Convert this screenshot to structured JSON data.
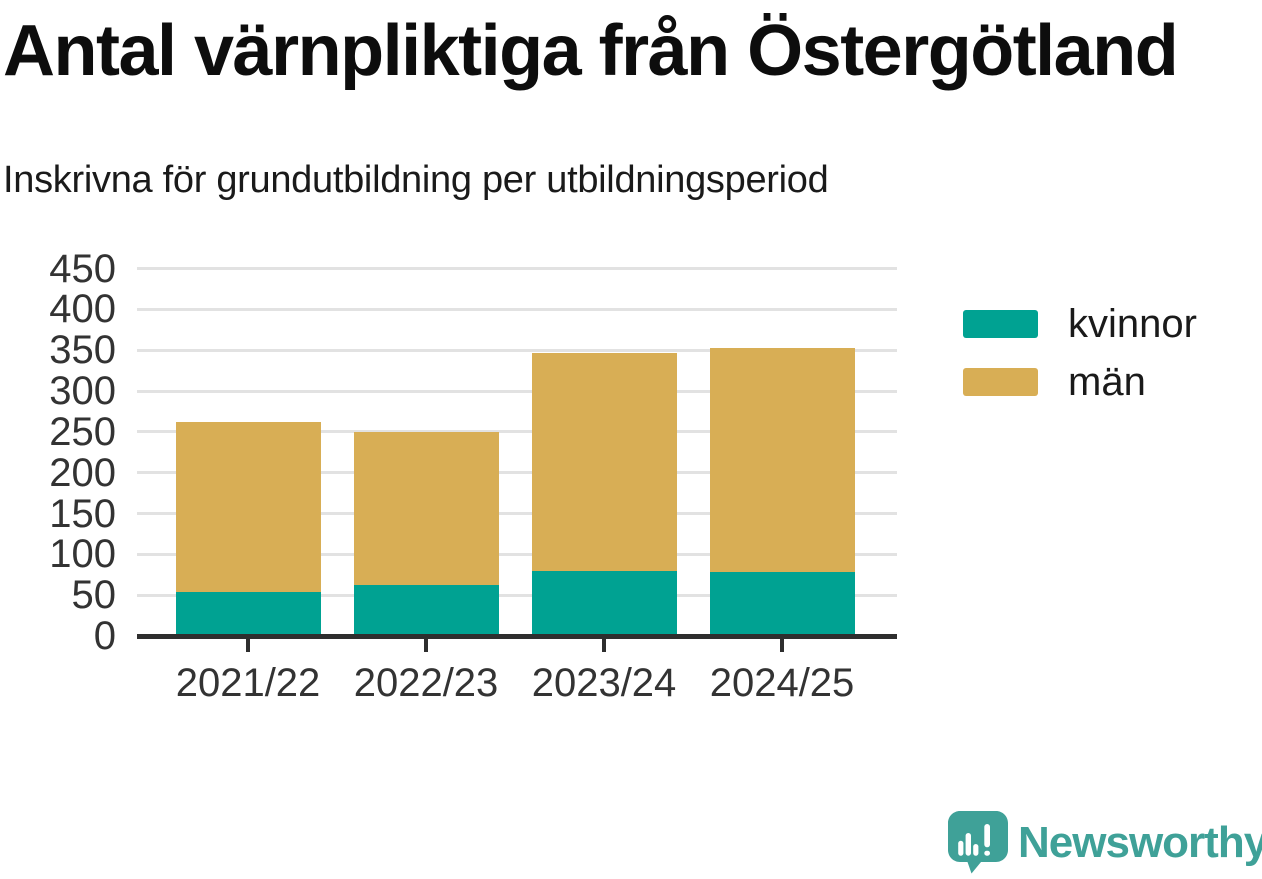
{
  "title": "Antal värnpliktiga från Östergötland",
  "subtitle": "Inskrivna för grundutbildning per utbildningsperiod",
  "chart_data": {
    "type": "bar",
    "stacked": true,
    "title": "Antal värnpliktiga från Östergötland",
    "subtitle": "Inskrivna för grundutbildning per utbildningsperiod",
    "categories": [
      "2021/22",
      "2022/23",
      "2023/24",
      "2024/25"
    ],
    "series": [
      {
        "name": "kvinnor",
        "color": "#00a292",
        "values": [
          54,
          62,
          80,
          78
        ]
      },
      {
        "name": "män",
        "color": "#d8ae55",
        "values": [
          208,
          188,
          266,
          275
        ]
      }
    ],
    "stack_totals": [
      262,
      250,
      346,
      353
    ],
    "xlabel": "",
    "ylabel": "",
    "ylim": [
      0,
      450
    ],
    "yticks": [
      0,
      50,
      100,
      150,
      200,
      250,
      300,
      350,
      400,
      450
    ],
    "grid": true,
    "legend_position": "right",
    "legend_entries": [
      "kvinnor",
      "män"
    ]
  },
  "branding": {
    "name": "Newsworthy"
  },
  "colors": {
    "kvinnor": "#00a292",
    "man": "#d8ae55",
    "logo": "#3fa198",
    "axis": "#2e2e2e",
    "grid": "#e2e2e2",
    "tick_text": "#333333"
  }
}
